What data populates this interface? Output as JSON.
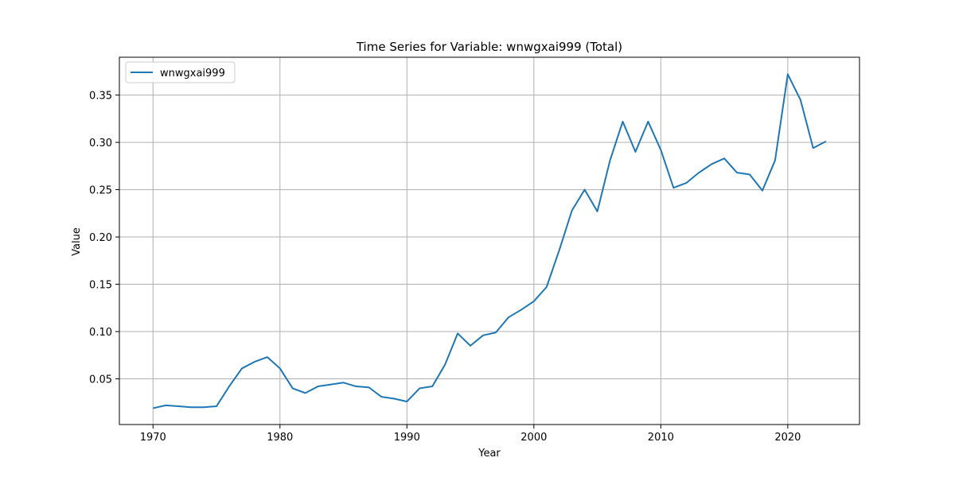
{
  "chart_data": {
    "type": "line",
    "title": "Time Series for Variable: wnwgxai999 (Total)",
    "xlabel": "Year",
    "ylabel": "Value",
    "xlim": [
      1967.35,
      2025.65
    ],
    "ylim": [
      0.0017,
      0.39
    ],
    "x_ticks": [
      1970,
      1980,
      1990,
      2000,
      2010,
      2020
    ],
    "y_ticks": [
      0.05,
      0.1,
      0.15,
      0.2,
      0.25,
      0.3,
      0.35
    ],
    "y_tick_labels": [
      "0.05",
      "0.10",
      "0.15",
      "0.20",
      "0.25",
      "0.30",
      "0.35"
    ],
    "grid": true,
    "legend_position": "top-left",
    "colors": {
      "series": "#1f77b4",
      "grid": "#b0b0b0",
      "axes": "#000000"
    },
    "series": [
      {
        "name": "wnwgxai999",
        "x": [
          1970,
          1971,
          1972,
          1973,
          1974,
          1975,
          1976,
          1977,
          1978,
          1979,
          1980,
          1981,
          1982,
          1983,
          1984,
          1985,
          1986,
          1987,
          1988,
          1989,
          1990,
          1991,
          1992,
          1993,
          1994,
          1995,
          1996,
          1997,
          1998,
          1999,
          2000,
          2001,
          2002,
          2003,
          2004,
          2005,
          2006,
          2007,
          2008,
          2009,
          2010,
          2011,
          2012,
          2013,
          2014,
          2015,
          2016,
          2017,
          2018,
          2019,
          2020,
          2021,
          2022,
          2023
        ],
        "values": [
          0.019,
          0.022,
          0.021,
          0.02,
          0.02,
          0.021,
          0.042,
          0.061,
          0.068,
          0.073,
          0.061,
          0.04,
          0.035,
          0.042,
          0.044,
          0.046,
          0.042,
          0.041,
          0.031,
          0.029,
          0.026,
          0.04,
          0.042,
          0.065,
          0.098,
          0.085,
          0.096,
          0.099,
          0.115,
          0.123,
          0.132,
          0.147,
          0.186,
          0.228,
          0.25,
          0.227,
          0.281,
          0.322,
          0.29,
          0.322,
          0.292,
          0.252,
          0.257,
          0.268,
          0.277,
          0.283,
          0.268,
          0.266,
          0.249,
          0.281,
          0.372,
          0.345,
          0.294,
          0.301
        ]
      }
    ]
  }
}
